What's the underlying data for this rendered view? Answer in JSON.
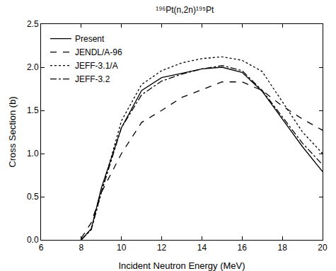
{
  "chart_data": {
    "type": "line",
    "title": "¹⁹⁶Pt(n,2n)¹⁹⁵Pt",
    "x_label": "Incident Neutron Energy (MeV)",
    "y_label": "Cross Section (b)",
    "x": [
      8.0,
      8.5,
      9,
      10,
      11,
      12,
      13,
      14,
      15,
      16,
      17,
      18,
      19,
      20
    ],
    "series": [
      {
        "name": "Present",
        "color": "#000000",
        "line_style": "solid",
        "values": [
          0.0,
          0.13,
          0.6,
          1.3,
          1.73,
          1.88,
          1.93,
          1.98,
          2.0,
          1.94,
          1.72,
          1.4,
          1.08,
          0.79
        ]
      },
      {
        "name": "JENDL/A-96",
        "color": "#000000",
        "line_style": "dash",
        "values": [
          0.02,
          0.2,
          0.55,
          1.0,
          1.36,
          1.5,
          1.65,
          1.74,
          1.83,
          1.83,
          1.73,
          1.55,
          1.4,
          1.27
        ]
      },
      {
        "name": "JEFF-3.1/A",
        "color": "#000000",
        "line_style": "dot",
        "values": [
          0.0,
          0.12,
          0.55,
          1.38,
          1.8,
          1.96,
          2.05,
          2.1,
          2.12,
          2.08,
          1.95,
          1.6,
          1.25,
          1.0
        ]
      },
      {
        "name": "JEFF-3.2",
        "color": "#000000",
        "line_style": "dashdot",
        "values": [
          0.0,
          0.12,
          0.55,
          1.3,
          1.68,
          1.84,
          1.92,
          1.98,
          2.02,
          1.96,
          1.73,
          1.42,
          1.12,
          0.87
        ]
      }
    ],
    "xlim": [
      6,
      20
    ],
    "xticks": [
      6,
      8,
      10,
      12,
      14,
      16,
      18,
      20
    ],
    "ylim": [
      0,
      2.5
    ],
    "yticks": [
      {
        "value": 0,
        "label": "0.0"
      },
      0.5,
      {
        "value": 1,
        "label": "1.0"
      },
      1.5,
      {
        "value": 2,
        "label": "2.0"
      },
      2.5
    ],
    "grid": false,
    "legend": "upper left"
  }
}
